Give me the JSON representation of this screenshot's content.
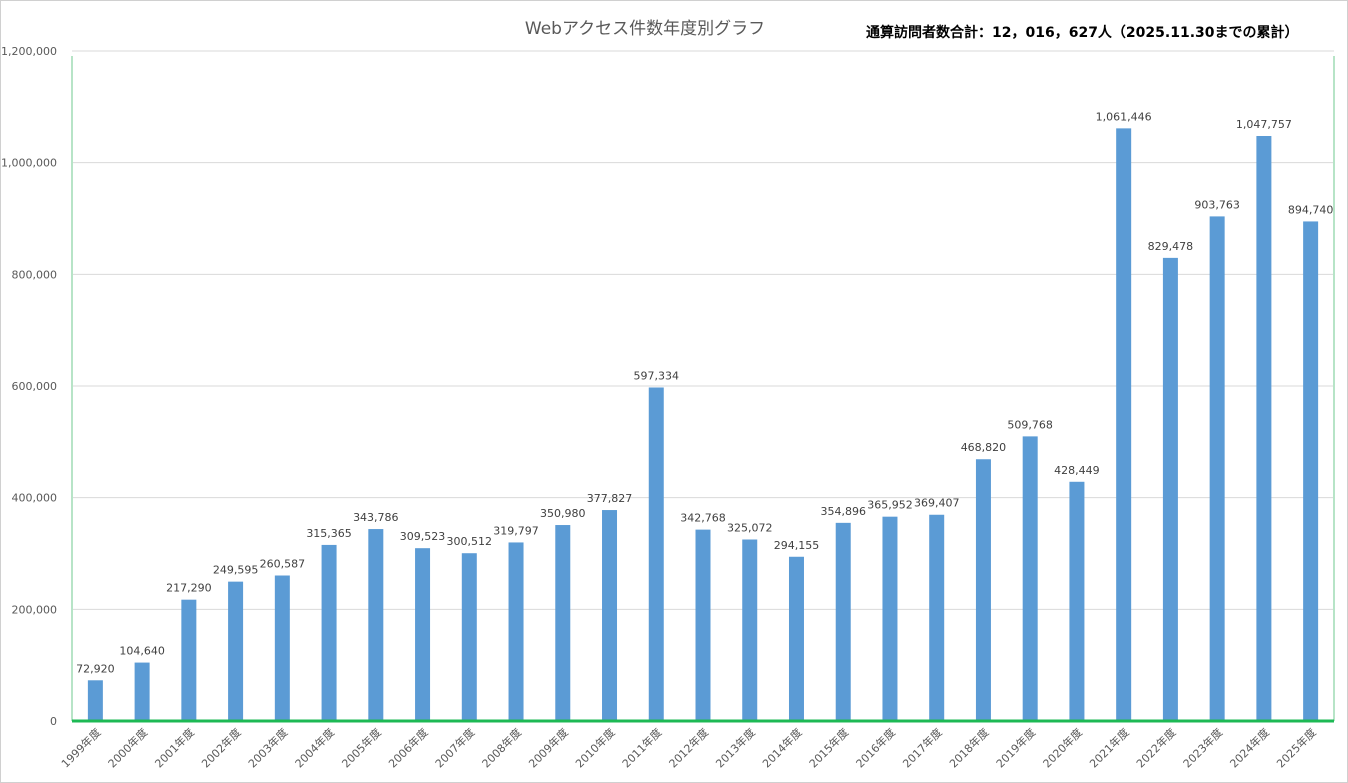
{
  "chart_data": {
    "type": "bar",
    "title": "Webアクセス件数年度別グラフ",
    "annotation": "通算訪問者数合計：12，016，627人（2025.11.30までの累計）",
    "categories": [
      "1999年度",
      "2000年度",
      "2001年度",
      "2002年度",
      "2003年度",
      "2004年度",
      "2005年度",
      "2006年度",
      "2007年度",
      "2008年度",
      "2009年度",
      "2010年度",
      "2011年度",
      "2012年度",
      "2013年度",
      "2014年度",
      "2015年度",
      "2016年度",
      "2017年度",
      "2018年度",
      "2019年度",
      "2020年度",
      "2021年度",
      "2022年度",
      "2023年度",
      "2024年度",
      "2025年度"
    ],
    "values": [
      72920,
      104640,
      217290,
      249595,
      260587,
      315365,
      343786,
      309523,
      300512,
      319797,
      350980,
      377827,
      597334,
      342768,
      325072,
      294155,
      354896,
      365952,
      369407,
      468820,
      509768,
      428449,
      1061446,
      829478,
      903763,
      1047757,
      894740
    ],
    "value_labels": [
      "72,920",
      "104,640",
      "217,290",
      "249,595",
      "260,587",
      "315,365",
      "343,786",
      "309,523",
      "300,512",
      "319,797",
      "350,980",
      "377,827",
      "597,334",
      "342,768",
      "325,072",
      "294,155",
      "354,896",
      "365,952",
      "369,407",
      "468,820",
      "509,768",
      "428,449",
      "1,061,446",
      "829,478",
      "903,763",
      "1,047,757",
      "894,740"
    ],
    "yticks": [
      0,
      200000,
      400000,
      600000,
      800000,
      1000000,
      1200000
    ],
    "ytick_labels": [
      "0",
      "200,000",
      "400,000",
      "600,000",
      "800,000",
      "1,000,000",
      "1,200,000"
    ],
    "ylim": [
      0,
      1200000
    ],
    "grid": true,
    "legend": "none",
    "bar_color": "#5B9BD5",
    "baseline_color": "#1DB954"
  }
}
